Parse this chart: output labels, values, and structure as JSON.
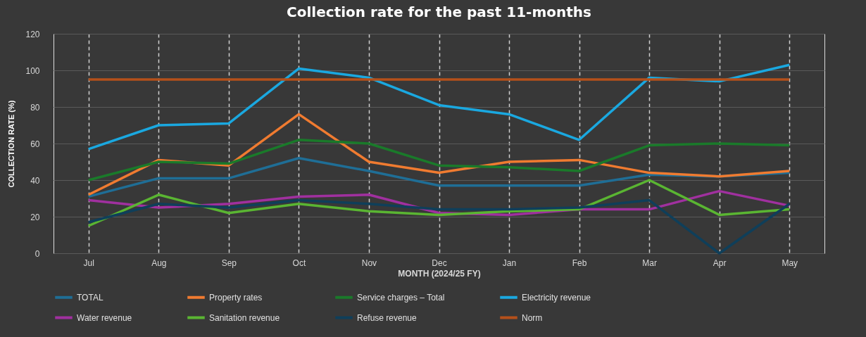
{
  "chart_data": {
    "type": "line",
    "title": "Collection rate for the past 11-months",
    "xlabel": "MONTH (2024/25 FY)",
    "ylabel": "COLLECTION RATE (%)",
    "categories": [
      "Jul",
      "Aug",
      "Sep",
      "Oct",
      "Nov",
      "Dec",
      "Jan",
      "Feb",
      "Mar",
      "Apr",
      "May"
    ],
    "series": [
      {
        "name": "TOTAL",
        "color": "#1f6e96",
        "values": [
          31,
          41,
          41,
          52,
          45,
          37,
          37,
          37,
          43,
          42,
          44
        ]
      },
      {
        "name": "Property rates",
        "color": "#f07b30",
        "values": [
          32,
          51,
          48,
          76,
          50,
          44,
          50,
          51,
          44,
          42,
          45
        ]
      },
      {
        "name": "Service charges – Total",
        "color": "#1a7a2a",
        "values": [
          40,
          50,
          49,
          62,
          60,
          48,
          47,
          45,
          59,
          60,
          59
        ]
      },
      {
        "name": "Electricity revenue",
        "color": "#1aa8e0",
        "values": [
          57,
          70,
          71,
          101,
          96,
          81,
          76,
          62,
          96,
          94,
          103
        ]
      },
      {
        "name": "Water revenue",
        "color": "#a0309f",
        "values": [
          29,
          25,
          27,
          31,
          32,
          22,
          21,
          24,
          24,
          34,
          26
        ]
      },
      {
        "name": "Sanitation revenue",
        "color": "#5ab532",
        "values": [
          15,
          32,
          22,
          27,
          23,
          21,
          23,
          24,
          40,
          21,
          24
        ]
      },
      {
        "name": "Refuse revenue",
        "color": "#0f3f5a",
        "values": [
          17,
          27,
          25,
          29,
          27,
          24,
          24,
          25,
          29,
          0,
          27
        ]
      },
      {
        "name": "Norm",
        "color": "#b5501a",
        "values": [
          95,
          95,
          95,
          95,
          95,
          95,
          95,
          95,
          95,
          95,
          95
        ]
      }
    ],
    "ylim": [
      0,
      120
    ],
    "yticks": [
      0,
      20,
      40,
      60,
      80,
      100,
      120
    ],
    "grid": true,
    "legend": "bottom"
  }
}
